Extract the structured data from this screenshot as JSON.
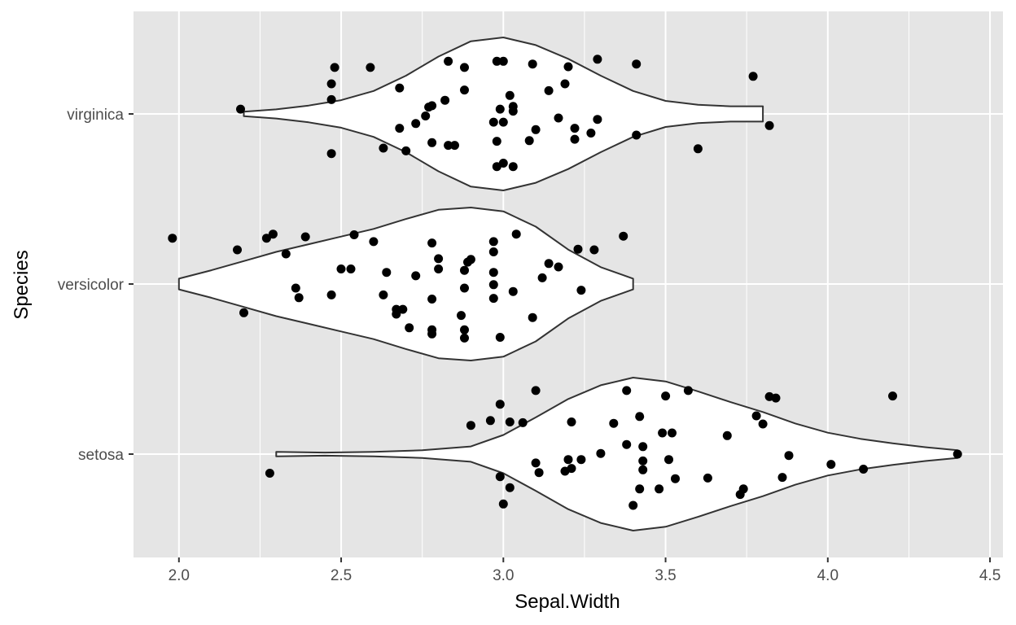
{
  "chart_data": {
    "type": "violin",
    "xlabel": "Sepal.Width",
    "ylabel": "Species",
    "xlim": [
      1.86,
      4.54
    ],
    "x_ticks": [
      "2.0",
      "2.5",
      "3.0",
      "3.5",
      "4.0",
      "4.5"
    ],
    "categories": [
      "setosa",
      "versicolor",
      "virginica"
    ],
    "grid": true,
    "colors": {
      "panel": "#e5e5e5",
      "grid": "#ffffff",
      "violin_fill": "#ffffff",
      "violin_stroke": "#333333",
      "point": "#000000"
    },
    "violins": [
      {
        "category": "setosa",
        "min": 2.3,
        "max": 4.4,
        "profile": [
          [
            2.3,
            0.03
          ],
          [
            2.45,
            0.02
          ],
          [
            2.6,
            0.03
          ],
          [
            2.75,
            0.05
          ],
          [
            2.9,
            0.1
          ],
          [
            3.0,
            0.25
          ],
          [
            3.1,
            0.48
          ],
          [
            3.2,
            0.72
          ],
          [
            3.3,
            0.9
          ],
          [
            3.4,
            1.0
          ],
          [
            3.5,
            0.95
          ],
          [
            3.6,
            0.82
          ],
          [
            3.7,
            0.68
          ],
          [
            3.8,
            0.55
          ],
          [
            3.9,
            0.4
          ],
          [
            4.0,
            0.28
          ],
          [
            4.1,
            0.2
          ],
          [
            4.2,
            0.14
          ],
          [
            4.3,
            0.09
          ],
          [
            4.4,
            0.05
          ]
        ]
      },
      {
        "category": "versicolor",
        "min": 2.0,
        "max": 3.4,
        "profile": [
          [
            2.0,
            0.07
          ],
          [
            2.1,
            0.18
          ],
          [
            2.2,
            0.3
          ],
          [
            2.3,
            0.42
          ],
          [
            2.4,
            0.52
          ],
          [
            2.5,
            0.62
          ],
          [
            2.6,
            0.72
          ],
          [
            2.7,
            0.85
          ],
          [
            2.8,
            0.97
          ],
          [
            2.9,
            1.0
          ],
          [
            3.0,
            0.95
          ],
          [
            3.1,
            0.75
          ],
          [
            3.2,
            0.45
          ],
          [
            3.3,
            0.22
          ],
          [
            3.4,
            0.07
          ]
        ]
      },
      {
        "category": "virginica",
        "min": 2.2,
        "max": 3.8,
        "profile": [
          [
            2.2,
            0.03
          ],
          [
            2.3,
            0.06
          ],
          [
            2.4,
            0.11
          ],
          [
            2.5,
            0.18
          ],
          [
            2.6,
            0.3
          ],
          [
            2.7,
            0.5
          ],
          [
            2.8,
            0.75
          ],
          [
            2.9,
            0.95
          ],
          [
            3.0,
            1.0
          ],
          [
            3.1,
            0.9
          ],
          [
            3.2,
            0.72
          ],
          [
            3.3,
            0.5
          ],
          [
            3.4,
            0.3
          ],
          [
            3.5,
            0.17
          ],
          [
            3.6,
            0.12
          ],
          [
            3.7,
            0.1
          ],
          [
            3.8,
            0.1
          ]
        ]
      }
    ],
    "points": {
      "setosa": [
        [
          3.38,
          0.93
        ],
        [
          3.57,
          0.93
        ],
        [
          4.2,
          0.85
        ],
        [
          3.82,
          0.84
        ],
        [
          3.5,
          0.85
        ],
        [
          3.1,
          0.93
        ],
        [
          2.99,
          0.73
        ],
        [
          3.84,
          0.82
        ],
        [
          3.78,
          0.56
        ],
        [
          3.42,
          0.55
        ],
        [
          3.34,
          0.45
        ],
        [
          3.21,
          0.47
        ],
        [
          3.06,
          0.46
        ],
        [
          3.02,
          0.47
        ],
        [
          2.96,
          0.49
        ],
        [
          2.9,
          0.42
        ],
        [
          3.49,
          0.31
        ],
        [
          3.52,
          0.31
        ],
        [
          3.69,
          0.27
        ],
        [
          3.8,
          0.44
        ],
        [
          3.38,
          0.14
        ],
        [
          3.43,
          0.11
        ],
        [
          3.3,
          0.01
        ],
        [
          3.2,
          -0.08
        ],
        [
          3.24,
          -0.08
        ],
        [
          3.1,
          -0.13
        ],
        [
          3.21,
          -0.21
        ],
        [
          3.19,
          -0.25
        ],
        [
          3.11,
          -0.27
        ],
        [
          2.99,
          -0.33
        ],
        [
          3.02,
          -0.49
        ],
        [
          3.0,
          -0.73
        ],
        [
          3.4,
          -0.75
        ],
        [
          3.42,
          -0.51
        ],
        [
          3.48,
          -0.51
        ],
        [
          3.43,
          -0.1
        ],
        [
          3.43,
          -0.23
        ],
        [
          3.53,
          -0.36
        ],
        [
          3.63,
          -0.35
        ],
        [
          3.74,
          -0.51
        ],
        [
          3.73,
          -0.59
        ],
        [
          3.86,
          -0.34
        ],
        [
          3.88,
          -0.02
        ],
        [
          4.01,
          -0.15
        ],
        [
          4.11,
          -0.22
        ],
        [
          4.4,
          0.0
        ],
        [
          2.28,
          -0.28
        ],
        [
          3.51,
          -0.08
        ]
      ],
      "versicolor": [
        [
          1.98,
          0.67
        ],
        [
          2.18,
          0.5
        ],
        [
          2.27,
          0.67
        ],
        [
          2.29,
          0.73
        ],
        [
          2.33,
          0.44
        ],
        [
          2.39,
          0.69
        ],
        [
          2.54,
          0.72
        ],
        [
          2.6,
          0.62
        ],
        [
          2.97,
          0.62
        ],
        [
          3.04,
          0.73
        ],
        [
          2.97,
          0.47
        ],
        [
          3.23,
          0.51
        ],
        [
          3.28,
          0.5
        ],
        [
          3.37,
          0.7
        ],
        [
          3.14,
          0.3
        ],
        [
          3.17,
          0.25
        ],
        [
          3.12,
          0.09
        ],
        [
          3.24,
          -0.09
        ],
        [
          3.03,
          -0.11
        ],
        [
          2.97,
          -0.21
        ],
        [
          2.97,
          -0.01
        ],
        [
          2.97,
          0.17
        ],
        [
          2.9,
          0.36
        ],
        [
          2.89,
          0.32
        ],
        [
          2.88,
          0.2
        ],
        [
          2.8,
          0.37
        ],
        [
          2.8,
          0.22
        ],
        [
          2.78,
          0.6
        ],
        [
          2.88,
          -0.06
        ],
        [
          2.73,
          0.12
        ],
        [
          2.64,
          0.17
        ],
        [
          2.53,
          0.22
        ],
        [
          2.5,
          0.22
        ],
        [
          2.63,
          -0.16
        ],
        [
          2.78,
          -0.22
        ],
        [
          2.67,
          -0.37
        ],
        [
          2.69,
          -0.37
        ],
        [
          2.67,
          -0.44
        ],
        [
          2.71,
          -0.64
        ],
        [
          2.78,
          -0.67
        ],
        [
          2.78,
          -0.73
        ],
        [
          2.88,
          -0.67
        ],
        [
          2.88,
          -0.79
        ],
        [
          2.99,
          -0.78
        ],
        [
          3.09,
          -0.49
        ],
        [
          2.87,
          -0.46
        ],
        [
          2.47,
          -0.16
        ],
        [
          2.37,
          -0.2
        ],
        [
          2.36,
          -0.06
        ],
        [
          2.2,
          -0.42
        ]
      ],
      "virginica": [
        [
          3.29,
          0.8
        ],
        [
          3.41,
          0.73
        ],
        [
          3.77,
          0.55
        ],
        [
          2.48,
          0.68
        ],
        [
          2.59,
          0.68
        ],
        [
          2.83,
          0.77
        ],
        [
          2.88,
          0.68
        ],
        [
          2.98,
          0.77
        ],
        [
          3.0,
          0.77
        ],
        [
          3.09,
          0.73
        ],
        [
          3.2,
          0.69
        ],
        [
          3.19,
          0.44
        ],
        [
          3.14,
          0.34
        ],
        [
          3.02,
          0.27
        ],
        [
          2.88,
          0.35
        ],
        [
          2.68,
          0.38
        ],
        [
          2.47,
          0.44
        ],
        [
          2.47,
          0.21
        ],
        [
          2.19,
          0.07
        ],
        [
          2.82,
          0.2
        ],
        [
          2.78,
          0.12
        ],
        [
          2.77,
          0.1
        ],
        [
          2.76,
          -0.03
        ],
        [
          2.73,
          -0.14
        ],
        [
          2.68,
          -0.21
        ],
        [
          2.78,
          -0.42
        ],
        [
          2.63,
          -0.5
        ],
        [
          2.7,
          -0.54
        ],
        [
          2.83,
          -0.46
        ],
        [
          2.85,
          -0.46
        ],
        [
          2.98,
          -0.4
        ],
        [
          3.08,
          -0.39
        ],
        [
          3.1,
          -0.23
        ],
        [
          3.0,
          -0.12
        ],
        [
          3.03,
          0.11
        ],
        [
          2.99,
          0.07
        ],
        [
          3.03,
          0.04
        ],
        [
          3.17,
          -0.06
        ],
        [
          3.22,
          -0.21
        ],
        [
          3.22,
          -0.37
        ],
        [
          3.27,
          -0.28
        ],
        [
          3.29,
          -0.08
        ],
        [
          3.41,
          -0.31
        ],
        [
          3.6,
          -0.51
        ],
        [
          3.82,
          -0.17
        ],
        [
          2.47,
          -0.58
        ],
        [
          2.98,
          -0.77
        ],
        [
          3.0,
          -0.72
        ],
        [
          3.03,
          -0.77
        ],
        [
          2.97,
          -0.12
        ]
      ]
    }
  }
}
